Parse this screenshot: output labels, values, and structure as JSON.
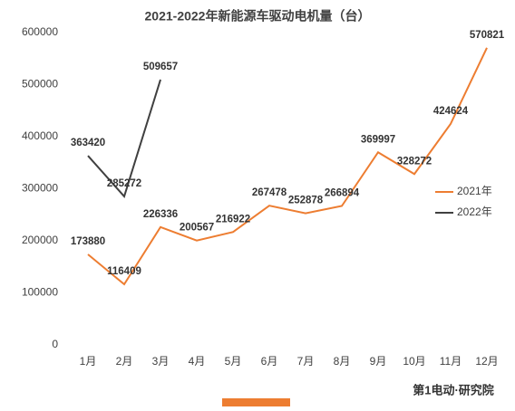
{
  "chart_data": {
    "type": "line",
    "title": "2021-2022年新能源车驱动电机量（台）",
    "categories": [
      "1月",
      "2月",
      "3月",
      "4月",
      "5月",
      "6月",
      "7月",
      "8月",
      "9月",
      "10月",
      "11月",
      "12月"
    ],
    "series": [
      {
        "name": "2021年",
        "color": "#ed7d31",
        "values": [
          173880,
          116409,
          226336,
          200567,
          216922,
          267478,
          252878,
          266894,
          369997,
          328272,
          424624,
          570821
        ]
      },
      {
        "name": "2022年",
        "color": "#404040",
        "values": [
          363420,
          285272,
          509657,
          null,
          null,
          null,
          null,
          null,
          null,
          null,
          null,
          null
        ]
      }
    ],
    "ylim": [
      0,
      600000
    ],
    "yticks": [
      0,
      100000,
      200000,
      300000,
      400000,
      500000,
      600000
    ],
    "grid": false,
    "legend": "right",
    "footer": "第1电动·研究院"
  }
}
